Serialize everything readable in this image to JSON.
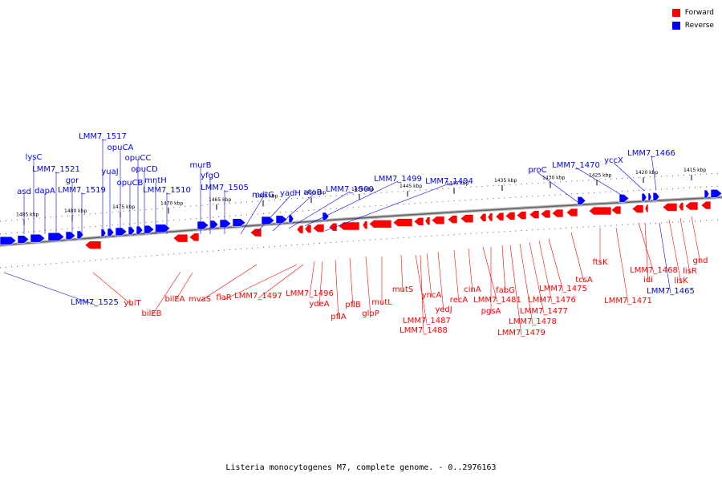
{
  "legend": {
    "forward": {
      "label": "Forward",
      "color": "#ff0000"
    },
    "reverse": {
      "label": "Reverse",
      "color": "#0000ff"
    }
  },
  "caption": "Listeria monocytogenes M7, complete genome. - 0..2976163",
  "ticks": [
    "1485 kbp",
    "1480 kbp",
    "1475 kbp",
    "1470 kbp",
    "1465 kbp",
    "1460 kbp",
    "1455 kbp",
    "1450 kbp",
    "1445 kbp",
    "1440 kbp",
    "1435 kbp",
    "1430 kbp",
    "1425 kbp",
    "1420 kbp",
    "1415 kbp"
  ],
  "reverse_labels": [
    "asd",
    "lysC",
    "dapA",
    "LMM7_1521",
    "gor",
    "LMM7_1519",
    "LMM7_1517",
    "yuaJ",
    "opuCA",
    "opuCB",
    "opuCC",
    "opuCD",
    "mntH",
    "LMM7_1510",
    "murB",
    "yfgO",
    "LMM7_1505",
    "mdtG",
    "yadH",
    "atoB",
    "LMM7_1500",
    "LMM7_1499",
    "LMM7_1494",
    "proC",
    "LMM7_1470",
    "yccX",
    "LMM7_1466",
    "LMM7_1525",
    "LMM7_1465"
  ],
  "forward_labels": [
    "ybiT",
    "bilEB",
    "bilEA",
    "mvaS",
    "flaR",
    "LMM7_1497",
    "LMM7_1496",
    "ydeA",
    "pflA",
    "pflB",
    "glpP",
    "mutL",
    "mutS",
    "LMM7_1487",
    "LMM7_1488",
    "yncA",
    "yedJ",
    "recA",
    "cinA",
    "LMM7_1481",
    "pgsA",
    "fabG",
    "LMM7_1479",
    "LMM7_1478",
    "LMM7_1477",
    "LMM7_1476",
    "LMM7_1475",
    "tcsA",
    "ftsK",
    "LMM7_1471",
    "LMM7_1468",
    "idi",
    "lisK",
    "lisR",
    "gnd"
  ]
}
